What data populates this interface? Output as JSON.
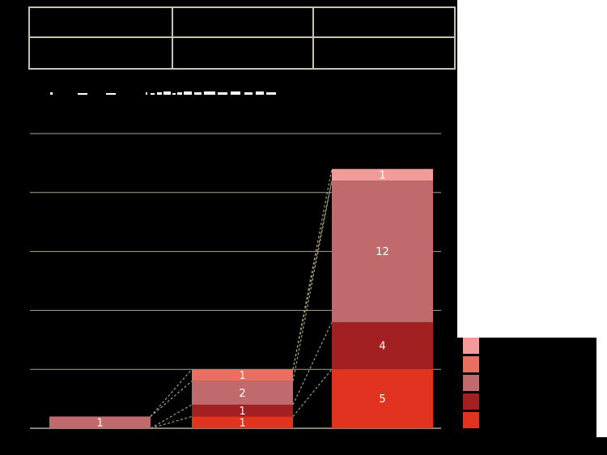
{
  "page": {
    "background_color": "#000000",
    "page_white_color": "#ffffff"
  },
  "table": {
    "border_color": "#c9c2ac",
    "rows": 2,
    "cols": 3,
    "cells": [
      [
        "",
        "",
        ""
      ],
      [
        "",
        "",
        ""
      ]
    ]
  },
  "title_fragments": {
    "color": "#ffffff",
    "rects": [
      [
        62,
        114,
        3,
        3
      ],
      [
        96,
        115,
        12,
        2
      ],
      [
        131,
        115,
        12,
        2
      ],
      [
        180,
        114,
        2,
        3
      ],
      [
        186,
        115,
        5,
        2
      ],
      [
        194,
        114,
        6,
        3
      ],
      [
        202,
        113,
        9,
        4
      ],
      [
        213,
        115,
        4,
        2
      ],
      [
        219,
        114,
        6,
        3
      ],
      [
        227,
        113,
        10,
        4
      ],
      [
        240,
        114,
        9,
        3
      ],
      [
        252,
        113,
        14,
        4
      ],
      [
        269,
        114,
        12,
        3
      ],
      [
        285,
        113,
        12,
        4
      ],
      [
        302,
        114,
        10,
        3
      ],
      [
        316,
        113,
        10,
        4
      ],
      [
        329,
        114,
        12,
        3
      ]
    ]
  },
  "chart_data": {
    "type": "bar",
    "stacked": true,
    "categories": [
      "",
      "",
      ""
    ],
    "series": [
      {
        "name": "bright-red",
        "color": "#e23220",
        "values": [
          0,
          1,
          5
        ]
      },
      {
        "name": "dark-red",
        "color": "#a32022",
        "values": [
          0,
          1,
          4
        ]
      },
      {
        "name": "rose",
        "color": "#c06a6e",
        "values": [
          1,
          2,
          12
        ]
      },
      {
        "name": "salmon",
        "color": "#eb6e62",
        "values": [
          0,
          1,
          0
        ]
      },
      {
        "name": "light-pink",
        "color": "#f19c9b",
        "values": [
          0,
          0,
          1
        ]
      }
    ],
    "bar_totals": [
      1,
      5,
      22
    ],
    "value_label_color": "#ffffff",
    "ylim": [
      0,
      25
    ],
    "grid_step": 5,
    "grid_on": true,
    "gridline_color": "#aca48d",
    "axis_line_color": "#b3ab95",
    "connector_color": "#a59c7a",
    "legend": {
      "position": "right",
      "labels_visible": false,
      "swatch_colors": [
        "#f19c9b",
        "#eb6e62",
        "#c06a6e",
        "#a32022",
        "#e23220"
      ]
    },
    "title": "",
    "xlabel": "",
    "ylabel": ""
  }
}
